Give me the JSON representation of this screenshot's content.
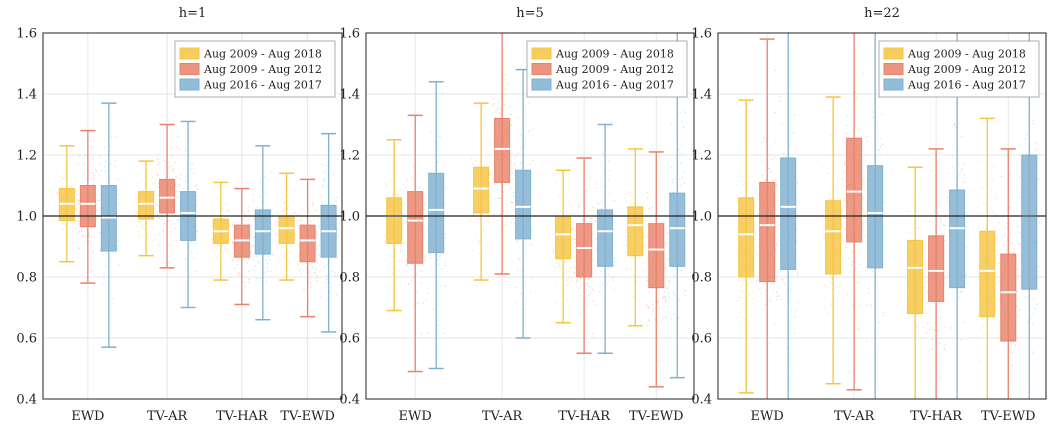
{
  "colors": {
    "series": [
      "#f5c542",
      "#e8826a",
      "#7fb0d0"
    ],
    "axis": "#222222",
    "grid": "#e6e6e6",
    "refline": "#222222",
    "median": "#ffffff"
  },
  "chart_data": [
    {
      "type": "box",
      "title": "h=1",
      "categories": [
        "EWD",
        "TV-AR",
        "TV-HAR",
        "TV-EWD"
      ],
      "ylim": [
        0.4,
        1.6
      ],
      "yticks": [
        "0.4",
        "0.6",
        "0.8",
        "1.0",
        "1.2",
        "1.4",
        "1.6"
      ],
      "reference_line": 1.0,
      "grid": true,
      "legend_position": "top-right",
      "series": [
        {
          "name": "Aug 2009 - Aug 2018",
          "boxes": [
            {
              "whisker_low": 0.85,
              "q1": 0.985,
              "median": 1.04,
              "q3": 1.09,
              "whisker_high": 1.23
            },
            {
              "whisker_low": 0.87,
              "q1": 0.99,
              "median": 1.04,
              "q3": 1.08,
              "whisker_high": 1.18
            },
            {
              "whisker_low": 0.79,
              "q1": 0.91,
              "median": 0.95,
              "q3": 0.99,
              "whisker_high": 1.11
            },
            {
              "whisker_low": 0.79,
              "q1": 0.91,
              "median": 0.96,
              "q3": 1.0,
              "whisker_high": 1.14
            }
          ]
        },
        {
          "name": "Aug 2009 - Aug 2012",
          "boxes": [
            {
              "whisker_low": 0.78,
              "q1": 0.965,
              "median": 1.04,
              "q3": 1.1,
              "whisker_high": 1.28
            },
            {
              "whisker_low": 0.83,
              "q1": 1.01,
              "median": 1.06,
              "q3": 1.12,
              "whisker_high": 1.3
            },
            {
              "whisker_low": 0.71,
              "q1": 0.865,
              "median": 0.92,
              "q3": 0.97,
              "whisker_high": 1.09
            },
            {
              "whisker_low": 0.67,
              "q1": 0.85,
              "median": 0.92,
              "q3": 0.97,
              "whisker_high": 1.12
            }
          ]
        },
        {
          "name": "Aug 2016 - Aug 2017",
          "boxes": [
            {
              "whisker_low": 0.57,
              "q1": 0.885,
              "median": 0.995,
              "q3": 1.1,
              "whisker_high": 1.37
            },
            {
              "whisker_low": 0.7,
              "q1": 0.92,
              "median": 1.01,
              "q3": 1.08,
              "whisker_high": 1.31
            },
            {
              "whisker_low": 0.66,
              "q1": 0.875,
              "median": 0.95,
              "q3": 1.02,
              "whisker_high": 1.23
            },
            {
              "whisker_low": 0.62,
              "q1": 0.865,
              "median": 0.95,
              "q3": 1.035,
              "whisker_high": 1.27
            }
          ]
        }
      ]
    },
    {
      "type": "box",
      "title": "h=5",
      "categories": [
        "EWD",
        "TV-AR",
        "TV-HAR",
        "TV-EWD"
      ],
      "ylim": [
        0.4,
        1.6
      ],
      "yticks": [
        "0.4",
        "0.6",
        "0.8",
        "1.0",
        "1.2",
        "1.4",
        "1.6"
      ],
      "reference_line": 1.0,
      "grid": true,
      "legend_position": "top-right",
      "series": [
        {
          "name": "Aug 2009 - Aug 2018",
          "boxes": [
            {
              "whisker_low": 0.69,
              "q1": 0.91,
              "median": 1.0,
              "q3": 1.06,
              "whisker_high": 1.25
            },
            {
              "whisker_low": 0.79,
              "q1": 1.01,
              "median": 1.09,
              "q3": 1.16,
              "whisker_high": 1.37
            },
            {
              "whisker_low": 0.65,
              "q1": 0.86,
              "median": 0.94,
              "q3": 1.0,
              "whisker_high": 1.15
            },
            {
              "whisker_low": 0.64,
              "q1": 0.87,
              "median": 0.97,
              "q3": 1.03,
              "whisker_high": 1.22
            }
          ]
        },
        {
          "name": "Aug 2009 - Aug 2012",
          "boxes": [
            {
              "whisker_low": 0.49,
              "q1": 0.845,
              "median": 0.985,
              "q3": 1.08,
              "whisker_high": 1.33
            },
            {
              "whisker_low": 0.81,
              "q1": 1.11,
              "median": 1.22,
              "q3": 1.32,
              "whisker_high": 1.6
            },
            {
              "whisker_low": 0.55,
              "q1": 0.8,
              "median": 0.895,
              "q3": 0.975,
              "whisker_high": 1.19
            },
            {
              "whisker_low": 0.44,
              "q1": 0.765,
              "median": 0.89,
              "q3": 0.975,
              "whisker_high": 1.21
            }
          ]
        },
        {
          "name": "Aug 2016 - Aug 2017",
          "boxes": [
            {
              "whisker_low": 0.5,
              "q1": 0.88,
              "median": 1.02,
              "q3": 1.14,
              "whisker_high": 1.44
            },
            {
              "whisker_low": 0.6,
              "q1": 0.925,
              "median": 1.03,
              "q3": 1.15,
              "whisker_high": 1.48
            },
            {
              "whisker_low": 0.55,
              "q1": 0.835,
              "median": 0.95,
              "q3": 1.02,
              "whisker_high": 1.3
            },
            {
              "whisker_low": 0.47,
              "q1": 0.835,
              "median": 0.96,
              "q3": 1.075,
              "whisker_high": 1.6
            }
          ]
        }
      ]
    },
    {
      "type": "box",
      "title": "h=22",
      "categories": [
        "EWD",
        "TV-AR",
        "TV-HAR",
        "TV-EWD"
      ],
      "ylim": [
        0.4,
        1.6
      ],
      "yticks": [
        "0.4",
        "0.6",
        "0.8",
        "1.0",
        "1.2",
        "1.4",
        "1.6"
      ],
      "reference_line": 1.0,
      "grid": true,
      "legend_position": "top-right",
      "series": [
        {
          "name": "Aug 2009 - Aug 2018",
          "boxes": [
            {
              "whisker_low": 0.42,
              "q1": 0.8,
              "median": 0.94,
              "q3": 1.06,
              "whisker_high": 1.38
            },
            {
              "whisker_low": 0.45,
              "q1": 0.81,
              "median": 0.95,
              "q3": 1.05,
              "whisker_high": 1.39
            },
            {
              "whisker_low": 0.4,
              "q1": 0.68,
              "median": 0.83,
              "q3": 0.92,
              "whisker_high": 1.16
            },
            {
              "whisker_low": 0.4,
              "q1": 0.67,
              "median": 0.82,
              "q3": 0.95,
              "whisker_high": 1.32
            }
          ]
        },
        {
          "name": "Aug 2009 - Aug 2012",
          "boxes": [
            {
              "whisker_low": 0.4,
              "q1": 0.785,
              "median": 0.97,
              "q3": 1.11,
              "whisker_high": 1.58
            },
            {
              "whisker_low": 0.43,
              "q1": 0.915,
              "median": 1.08,
              "q3": 1.255,
              "whisker_high": 1.6
            },
            {
              "whisker_low": 0.4,
              "q1": 0.72,
              "median": 0.82,
              "q3": 0.935,
              "whisker_high": 1.22
            },
            {
              "whisker_low": 0.4,
              "q1": 0.59,
              "median": 0.75,
              "q3": 0.875,
              "whisker_high": 1.22
            }
          ]
        },
        {
          "name": "Aug 2016 - Aug 2017",
          "boxes": [
            {
              "whisker_low": 0.4,
              "q1": 0.825,
              "median": 1.03,
              "q3": 1.19,
              "whisker_high": 1.6
            },
            {
              "whisker_low": 0.4,
              "q1": 0.83,
              "median": 1.01,
              "q3": 1.165,
              "whisker_high": 1.6
            },
            {
              "whisker_low": 0.4,
              "q1": 0.765,
              "median": 0.96,
              "q3": 1.085,
              "whisker_high": 1.6
            },
            {
              "whisker_low": 0.4,
              "q1": 0.76,
              "median": 1.0,
              "q3": 1.2,
              "whisker_high": 1.6
            }
          ]
        }
      ]
    }
  ]
}
